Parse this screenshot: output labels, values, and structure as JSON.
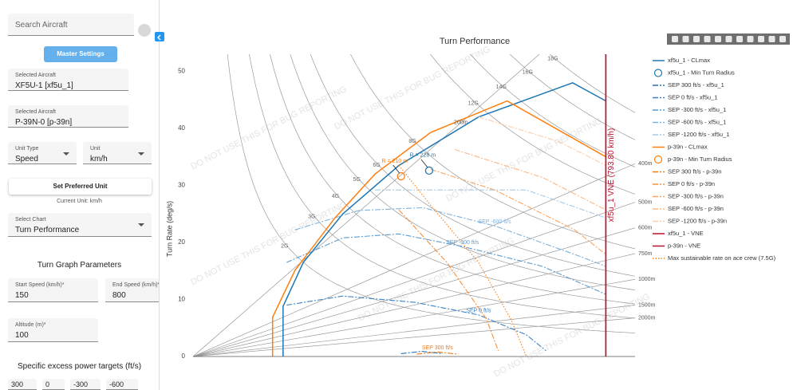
{
  "sidebar": {
    "search_placeholder": "Search Aircraft",
    "master_settings": "Master Settings",
    "aircraft": [
      {
        "label": "Selected Aircraft",
        "value": "XF5U-1 [xf5u_1]"
      },
      {
        "label": "Selected Aircraft",
        "value": "P-39N-0 [p-39n]"
      }
    ],
    "unit_type": {
      "label": "Unit Type",
      "value": "Speed"
    },
    "unit": {
      "label": "Unit",
      "value": "km/h"
    },
    "set_preferred": "Set Preferred Unit",
    "current_unit": "Current Unit: km/h",
    "select_chart": {
      "label": "Select Chart",
      "value": "Turn Performance"
    },
    "params_title": "Turn Graph Parameters",
    "start_speed": {
      "label": "Start Speed (km/h)*",
      "value": "150"
    },
    "end_speed": {
      "label": "End Speed (km/h)*",
      "value": "800"
    },
    "altitude": {
      "label": "Altitude (m)*",
      "value": "100"
    },
    "sep_title": "Specific excess power targets (ft/s)",
    "sep_targets": [
      "300",
      "0",
      "-300",
      "-600"
    ]
  },
  "chart_data": {
    "type": "line",
    "title": "Turn Performance",
    "y_label": "Turn Rate (deg/s)",
    "watermark": "DO NOT USE THIS FOR BUG REPORTING",
    "xlim": [
      0,
      850
    ],
    "ylim": [
      0,
      53
    ],
    "yticks": [
      0,
      10,
      20,
      30,
      40,
      50
    ],
    "g_lines": [
      {
        "value": 2,
        "label": "2G"
      },
      {
        "value": 3,
        "label": "3G"
      },
      {
        "value": 4,
        "label": "4G"
      },
      {
        "value": 5,
        "label": "5G"
      },
      {
        "value": 6,
        "label": "6G"
      },
      {
        "value": 8,
        "label": "8G"
      },
      {
        "value": 12,
        "label": "12G"
      },
      {
        "value": 14,
        "label": "14G"
      },
      {
        "value": 16,
        "label": "16G"
      },
      {
        "value": 18,
        "label": "18G"
      }
    ],
    "radius_lines": [
      {
        "value": 200,
        "label": "200m"
      },
      {
        "value": 400,
        "label": "400m"
      },
      {
        "value": 500,
        "label": "500m"
      },
      {
        "value": 600,
        "label": "600m"
      },
      {
        "value": 750,
        "label": "750m"
      },
      {
        "value": 1000,
        "label": "1000m"
      },
      {
        "value": 1500,
        "label": "1500m"
      },
      {
        "value": 2000,
        "label": "2000m"
      }
    ],
    "series": [
      {
        "name": "xf5u_1 - CLmax",
        "color": "#1f77b4",
        "dash": "solid",
        "x": [
          173,
          173,
          212,
          288,
          396,
          549,
          730,
          794
        ],
        "values": [
          0,
          8.8,
          16.5,
          25,
          33.5,
          42,
          48,
          44.8
        ]
      },
      {
        "name": "xf5u_1 - Min Turn Radius",
        "color": "#1f77b4",
        "mode": "marker",
        "x": [
          454
        ],
        "values": [
          32.6
        ],
        "label": "R = 228 m"
      },
      {
        "name": "SEP 300 ft/s - xf5u_1",
        "color": "#2a6fb0",
        "dash": "dashdot",
        "x": [
          400,
          440,
          480
        ],
        "values": [
          0.5,
          0.9,
          0.5
        ]
      },
      {
        "name": "SEP 0 ft/s - xf5u_1",
        "color": "#3a82c4",
        "dash": "dashdot",
        "x": [
          180,
          288,
          427,
          549,
          641,
          679
        ],
        "values": [
          9.0,
          10.6,
          9.5,
          7.3,
          3.8,
          1.0
        ],
        "label": "SEP 0 ft/s"
      },
      {
        "name": "SEP -300 ft/s - xf5u_1",
        "color": "#5b9bd0",
        "dash": "dashdot",
        "x": [
          180,
          288,
          396,
          518,
          672,
          794
        ],
        "values": [
          16.5,
          20.8,
          21.5,
          19.3,
          15.8,
          10.9
        ],
        "label": "SEP -300 ft/s"
      },
      {
        "name": "SEP -600 ft/s - xf5u_1",
        "color": "#7fb2dc",
        "dash": "dashdot",
        "x": [
          196,
          319,
          442,
          580,
          734,
          794
        ],
        "values": [
          22.2,
          25.6,
          26.1,
          22.9,
          17.9,
          15.8
        ],
        "label": "SEP -600 ft/s"
      },
      {
        "name": "SEP -1200 ft/s - xf5u_1",
        "color": "#a9cbe8",
        "dash": "dashdot",
        "x": [
          350,
          488,
          641,
          794
        ],
        "values": [
          29.2,
          29.2,
          29.2,
          24.3
        ]
      },
      {
        "name": "p-39n - CLmax",
        "color": "#ff7f0e",
        "dash": "solid",
        "x": [
          153,
          153,
          196,
          273,
          350,
          457,
          604,
          794
        ],
        "values": [
          0,
          6.9,
          15.1,
          24.3,
          32,
          39.3,
          44.8,
          35
        ]
      },
      {
        "name": "p-39n - Min Turn Radius",
        "color": "#ff7f0e",
        "mode": "marker",
        "x": [
          400
        ],
        "values": [
          31.6
        ],
        "label": "R = 210 m"
      },
      {
        "name": "SEP 300 ft/s - p-39n",
        "color": "#f47a10",
        "dash": "dashdot",
        "x": [
          430,
          470,
          510
        ],
        "values": [
          0.4,
          0.8,
          0.4
        ],
        "label": "SEP 300 ft/s"
      },
      {
        "name": "SEP 0 ft/s - p-39n",
        "color": "#f78f3a",
        "dash": "dashdot",
        "x": [
          396,
          488,
          564,
          587
        ],
        "values": [
          25.7,
          16.5,
          6.6,
          1.0
        ]
      },
      {
        "name": "SEP -300 ft/s - p-39n",
        "color": "#f9a460",
        "dash": "dashdot",
        "x": [
          457,
          580,
          734,
          794
        ],
        "values": [
          32.8,
          29.2,
          22.2,
          17.9
        ]
      },
      {
        "name": "SEP -600 ft/s - p-39n",
        "color": "#fbb987",
        "dash": "dashdot",
        "x": [
          503,
          672,
          794
        ],
        "values": [
          36.3,
          31.4,
          25.7
        ]
      },
      {
        "name": "SEP -1200 ft/s - p-39n",
        "color": "#fccfac",
        "dash": "dashdot",
        "x": [
          549,
          703,
          794
        ],
        "values": [
          42,
          37.7,
          33.5
        ]
      },
      {
        "name": "xf5u_1 - VNE",
        "color": "#b5122b",
        "mode": "vline",
        "x": [
          793.8
        ],
        "label": "xf5u_1 VNE (793.80 km/h)"
      },
      {
        "name": "p-39n - VNE",
        "color": "#b5122b",
        "mode": "vline",
        "x": [
          793.8
        ]
      },
      {
        "name": "Max sustainable rate on ace crew (7.5G)",
        "color": "#ff7f0e",
        "dash": "dot",
        "x": [
          396,
          457,
          549,
          611,
          641
        ],
        "values": [
          33.5,
          26.5,
          16.5,
          6.6,
          0
        ]
      }
    ]
  }
}
